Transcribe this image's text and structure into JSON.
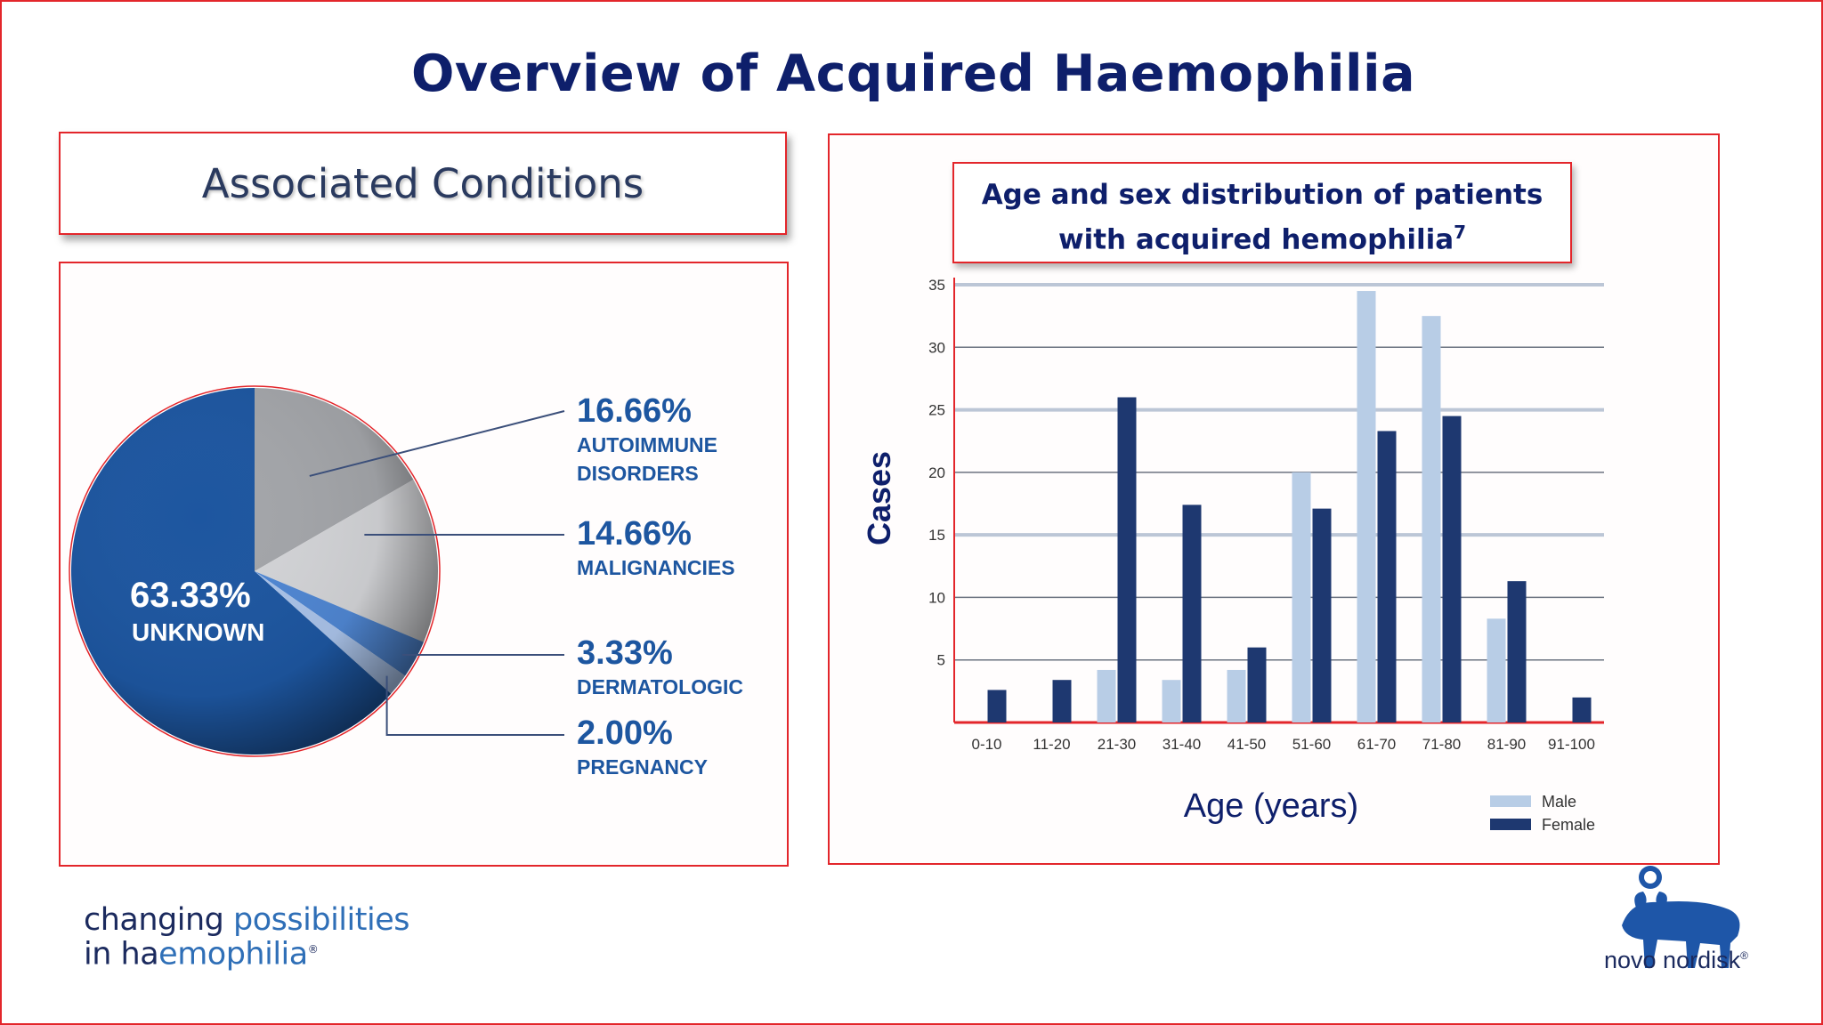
{
  "slide_title": "Overview of Acquired Haemophilia",
  "section_label": "Associated Conditions",
  "brand": {
    "tagline_line1_a": "changing ",
    "tagline_line1_b": "possibilities",
    "tagline_line2_a": "in ha",
    "tagline_line2_b": "emophilia",
    "tagline_mark": "®",
    "logo_text": "novo nordisk",
    "logo_mark": "®"
  },
  "colors": {
    "accent_red": "#e3262b",
    "navy": "#0e1f6b",
    "male": "#b8cde6",
    "female": "#1e3870",
    "pie_unknown": "#1d56a0"
  },
  "chart_data": [
    {
      "type": "pie",
      "slices": [
        {
          "value_label": "16.66%",
          "name_lines": [
            "AUTOIMMUNE",
            "DISORDERS"
          ],
          "value": 16.66,
          "color": "#a3a5a9"
        },
        {
          "value_label": "14.66%",
          "name_lines": [
            "MALIGNANCIES"
          ],
          "value": 14.66,
          "color": "#d2d3d6"
        },
        {
          "value_label": "3.33%",
          "name_lines": [
            "DERMATOLOGIC"
          ],
          "value": 3.33,
          "color": "#4f86d2"
        },
        {
          "value_label": "2.00%",
          "name_lines": [
            "PREGNANCY"
          ],
          "value": 2.0,
          "color": "#a9c2e8"
        },
        {
          "value_label": "63.33%",
          "name_lines": [
            "UNKNOWN"
          ],
          "value": 63.33,
          "color": "#1d56a0"
        }
      ]
    },
    {
      "type": "bar",
      "title_line1": "Age and sex distribution of patients",
      "title_line2": "with acquired hemophilia",
      "title_sup": "7",
      "xlabel": "Age (years)",
      "ylabel": "Cases",
      "ylim": [
        0,
        35
      ],
      "yticks": [
        5,
        10,
        15,
        20,
        25,
        30,
        35
      ],
      "grid": true,
      "legend_position": "bottom-right",
      "categories": [
        "0-10",
        "11-20",
        "21-30",
        "31-40",
        "41-50",
        "51-60",
        "61-70",
        "71-80",
        "81-90",
        "91-100"
      ],
      "series": [
        {
          "name": "Male",
          "color": "#b8cde6",
          "values": [
            0,
            0,
            4.2,
            3.4,
            4.2,
            20,
            34.5,
            32.5,
            8.3,
            0
          ]
        },
        {
          "name": "Female",
          "color": "#1e3870",
          "values": [
            2.6,
            3.4,
            26,
            17.4,
            6,
            17.1,
            23.3,
            24.5,
            11.3,
            2
          ]
        }
      ]
    }
  ]
}
